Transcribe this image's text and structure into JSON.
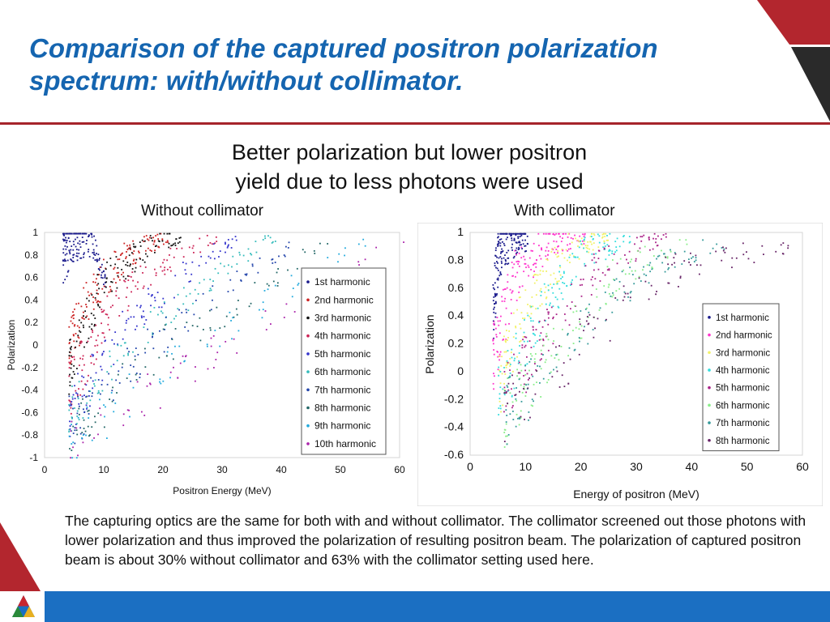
{
  "slide": {
    "title": "Comparison of the captured positron polarization spectrum: with/without collimator.",
    "subtitle_line1": "Better polarization but lower positron",
    "subtitle_line2": "yield due to less photons were used",
    "left_label": "Without collimator",
    "right_label": "With collimator",
    "body": "The capturing optics are the same for both with and without collimator.  The collimator screened out those photons with lower polarization and thus improved the polarization of resulting positron beam.   The polarization of captured positron beam is about 30% without collimator and 63% with the collimator setting used here.",
    "colors": {
      "title": "#1565b0",
      "rule": "#a6242b",
      "bottom_bar": "#1b6fc2",
      "corner_red": "#b3262e",
      "corner_dark": "#2a2a2a"
    }
  },
  "chart_data": [
    {
      "type": "scatter",
      "panel": "Without collimator",
      "xlabel": "Positron Energy (MeV)",
      "ylabel": "Polarization",
      "xlim": [
        0,
        60
      ],
      "ylim": [
        -1,
        1
      ],
      "xticks": [
        "0",
        "10",
        "20",
        "30",
        "40",
        "50",
        "60"
      ],
      "yticks": [
        "1",
        "0.8",
        "0.6",
        "0.4",
        "0.2",
        "0",
        "-0.2",
        "-0.4",
        "-0.6",
        "-0.8",
        "-1"
      ],
      "grid": false,
      "legend_position": "right",
      "series": [
        {
          "name": "1st harmonic",
          "color": "#1a1a8c",
          "trend": [
            [
              3,
              0.8
            ],
            [
              5,
              0.95
            ],
            [
              8,
              0.9
            ],
            [
              10,
              0.6
            ]
          ]
        },
        {
          "name": "2nd harmonic",
          "color": "#cc2222",
          "trend": [
            [
              4,
              0.0
            ],
            [
              8,
              0.5
            ],
            [
              14,
              0.8
            ],
            [
              20,
              0.95
            ]
          ]
        },
        {
          "name": "3rd harmonic",
          "color": "#111111",
          "trend": [
            [
              4,
              -0.2
            ],
            [
              10,
              0.6
            ],
            [
              18,
              0.9
            ],
            [
              22,
              0.95
            ]
          ]
        },
        {
          "name": "4th harmonic",
          "color": "#cc2255",
          "trend": [
            [
              4,
              -0.4
            ],
            [
              12,
              0.4
            ],
            [
              22,
              0.8
            ],
            [
              28,
              0.95
            ]
          ]
        },
        {
          "name": "5th harmonic",
          "color": "#3333cc",
          "trend": [
            [
              4,
              -0.6
            ],
            [
              14,
              0.2
            ],
            [
              25,
              0.7
            ],
            [
              32,
              0.95
            ]
          ]
        },
        {
          "name": "6th harmonic",
          "color": "#33bbbb",
          "trend": [
            [
              4,
              -0.6
            ],
            [
              16,
              0.1
            ],
            [
              28,
              0.6
            ],
            [
              38,
              0.95
            ]
          ]
        },
        {
          "name": "7th harmonic",
          "color": "#2244aa",
          "trend": [
            [
              4,
              -0.7
            ],
            [
              18,
              0.0
            ],
            [
              30,
              0.5
            ],
            [
              42,
              0.9
            ]
          ]
        },
        {
          "name": "8th harmonic",
          "color": "#226666",
          "trend": [
            [
              4,
              -0.8
            ],
            [
              20,
              0.0
            ],
            [
              34,
              0.4
            ],
            [
              46,
              0.9
            ]
          ]
        },
        {
          "name": "9th harmonic",
          "color": "#22aadd",
          "trend": [
            [
              4,
              -0.9
            ],
            [
              22,
              -0.1
            ],
            [
              38,
              0.4
            ],
            [
              52,
              0.9
            ]
          ]
        },
        {
          "name": "10th harmonic",
          "color": "#aa22aa",
          "trend": [
            [
              4,
              -0.9
            ],
            [
              24,
              -0.2
            ],
            [
              40,
              0.3
            ],
            [
              58,
              0.9
            ]
          ]
        }
      ]
    },
    {
      "type": "scatter",
      "panel": "With collimator",
      "xlabel": "Energy of positron (MeV)",
      "ylabel": "Polarization",
      "xlim": [
        0,
        60
      ],
      "ylim": [
        -0.6,
        1
      ],
      "xticks": [
        "0",
        "10",
        "20",
        "30",
        "40",
        "50",
        "60"
      ],
      "yticks": [
        "1",
        "0.8",
        "0.6",
        "0.4",
        "0.2",
        "0",
        "-0.2",
        "-0.4",
        "-0.6"
      ],
      "grid": false,
      "legend_position": "right",
      "series": [
        {
          "name": "1st harmonic",
          "color": "#1a1a8c",
          "trend": [
            [
              4,
              0.4
            ],
            [
              5,
              0.9
            ],
            [
              8,
              0.97
            ],
            [
              10,
              0.95
            ]
          ]
        },
        {
          "name": "2nd harmonic",
          "color": "#ff33cc",
          "trend": [
            [
              4,
              0.1
            ],
            [
              8,
              0.7
            ],
            [
              14,
              0.95
            ],
            [
              20,
              0.98
            ]
          ]
        },
        {
          "name": "3rd harmonic",
          "color": "#f2f266",
          "trend": [
            [
              5,
              -0.1
            ],
            [
              10,
              0.5
            ],
            [
              18,
              0.9
            ],
            [
              24,
              0.97
            ]
          ]
        },
        {
          "name": "4th harmonic",
          "color": "#33dddd",
          "trend": [
            [
              5,
              -0.2
            ],
            [
              12,
              0.4
            ],
            [
              20,
              0.85
            ],
            [
              28,
              0.95
            ]
          ]
        },
        {
          "name": "5th harmonic",
          "color": "#aa2288",
          "trend": [
            [
              6,
              -0.2
            ],
            [
              14,
              0.3
            ],
            [
              24,
              0.8
            ],
            [
              34,
              0.95
            ]
          ]
        },
        {
          "name": "6th harmonic",
          "color": "#88ee88",
          "trend": [
            [
              6,
              -0.3
            ],
            [
              16,
              0.2
            ],
            [
              26,
              0.7
            ],
            [
              38,
              0.93
            ]
          ]
        },
        {
          "name": "7th harmonic",
          "color": "#339999",
          "trend": [
            [
              6,
              -0.3
            ],
            [
              18,
              0.2
            ],
            [
              30,
              0.7
            ],
            [
              44,
              0.92
            ]
          ]
        },
        {
          "name": "8th harmonic",
          "color": "#662266",
          "trend": [
            [
              6,
              -0.3
            ],
            [
              20,
              0.2
            ],
            [
              34,
              0.7
            ],
            [
              55,
              0.9
            ]
          ]
        }
      ]
    }
  ]
}
